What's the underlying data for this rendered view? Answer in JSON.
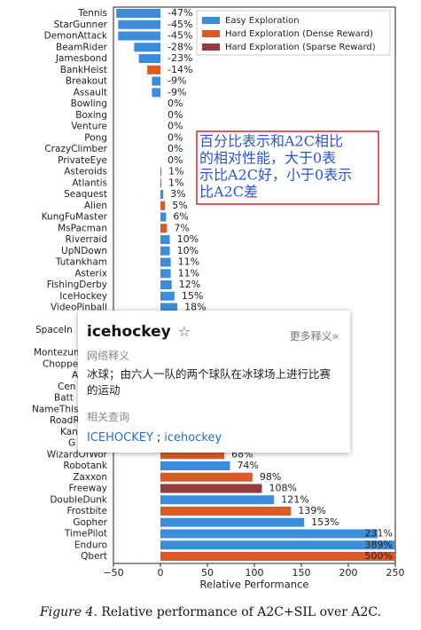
{
  "chart_data": {
    "type": "barh",
    "xlabel": "Relative Performance",
    "categories": [
      "Tennis",
      "StarGunner",
      "DemonAttack",
      "BeamRider",
      "Jamesbond",
      "BankHeist",
      "Breakout",
      "Assault",
      "Bowling",
      "Boxing",
      "Venture",
      "Pong",
      "CrazyClimber",
      "PrivateEye",
      "Asteroids",
      "Atlantis",
      "Seaquest",
      "Alien",
      "KungFuMaster",
      "MsPacman",
      "Riverraid",
      "UpNDown",
      "Tutankham",
      "Asterix",
      "FishingDerby",
      "IceHockey",
      "VideoPinball",
      null,
      "SpaceIn",
      null,
      "MontezumaRe",
      "ChopperCon",
      "A",
      "Cen",
      "Batt",
      "NameThis",
      "RoadR",
      "Kan",
      "G",
      "WizardOfWor",
      "Robotank",
      "Zaxxon",
      "Freeway",
      "DoubleDunk",
      "Frostbite",
      "Gopher",
      "TimePilot",
      "Enduro",
      "Qbert"
    ],
    "series": [
      {
        "name": "Easy Exploration",
        "color": "#3b8ddc",
        "values": [
          -47,
          -45,
          -45,
          -28,
          -23,
          null,
          -9,
          -9,
          0,
          0,
          0,
          0,
          0,
          0,
          1,
          1,
          3,
          null,
          6,
          null,
          10,
          10,
          11,
          11,
          12,
          15,
          18,
          null,
          null,
          null,
          null,
          null,
          null,
          null,
          null,
          null,
          null,
          null,
          null,
          null,
          74,
          null,
          null,
          121,
          null,
          153,
          231,
          389,
          null
        ],
        "value_labels": [
          "-47%",
          "-45%",
          "-45%",
          "-28%",
          "-23%",
          null,
          "-9%",
          "-9%",
          "0%",
          "0%",
          "0%",
          "0%",
          "0%",
          "0%",
          "1%",
          "1%",
          "3%",
          null,
          "6%",
          null,
          "10%",
          "10%",
          "11%",
          "11%",
          "12%",
          "15%",
          "18%",
          null,
          null,
          null,
          null,
          null,
          null,
          null,
          null,
          null,
          null,
          null,
          null,
          null,
          "74%",
          null,
          null,
          "121%",
          null,
          "153%",
          "231%",
          "389%",
          null
        ]
      },
      {
        "name": "Hard Exploration (Dense Reward)",
        "color": "#dc5a26",
        "values": [
          null,
          null,
          null,
          null,
          null,
          -14,
          null,
          null,
          null,
          null,
          null,
          null,
          null,
          null,
          null,
          null,
          null,
          5,
          null,
          7,
          null,
          null,
          null,
          null,
          null,
          null,
          null,
          null,
          null,
          null,
          null,
          null,
          null,
          null,
          null,
          null,
          null,
          null,
          null,
          68,
          null,
          98,
          null,
          null,
          139,
          null,
          null,
          null,
          500
        ],
        "value_labels": [
          null,
          null,
          null,
          null,
          null,
          "-14%",
          null,
          null,
          null,
          null,
          null,
          null,
          null,
          null,
          null,
          null,
          null,
          "5%",
          null,
          "7%",
          null,
          null,
          null,
          null,
          null,
          null,
          null,
          null,
          null,
          null,
          null,
          null,
          null,
          null,
          null,
          null,
          null,
          null,
          null,
          "68%",
          null,
          "98%",
          null,
          null,
          "139%",
          null,
          null,
          null,
          "500%"
        ]
      },
      {
        "name": "Hard Exploration (Sparse Reward)",
        "color": "#973a3c",
        "values": [
          null,
          null,
          null,
          null,
          null,
          null,
          null,
          null,
          null,
          null,
          null,
          null,
          null,
          null,
          null,
          null,
          null,
          null,
          null,
          null,
          null,
          null,
          null,
          null,
          null,
          null,
          null,
          null,
          null,
          null,
          null,
          null,
          null,
          null,
          null,
          null,
          null,
          null,
          null,
          null,
          null,
          null,
          108,
          null,
          null,
          null,
          null,
          null,
          null
        ],
        "value_labels": [
          null,
          null,
          null,
          null,
          null,
          null,
          null,
          null,
          null,
          null,
          null,
          null,
          null,
          null,
          null,
          null,
          null,
          null,
          null,
          null,
          null,
          null,
          null,
          null,
          null,
          null,
          null,
          null,
          null,
          null,
          null,
          null,
          null,
          null,
          null,
          null,
          null,
          null,
          null,
          null,
          null,
          null,
          "108%",
          null,
          null,
          null,
          null,
          null,
          null
        ]
      }
    ],
    "xlim": [
      -50,
      250
    ],
    "xticks": [
      {
        "value": -50,
        "label": "−50"
      },
      0,
      50,
      100,
      150,
      200,
      250
    ],
    "legend": "upper right",
    "annotation": {
      "lines": [
        "百分比表示和A2C相比",
        "的相对性能，大于0表",
        "示比A2C好，小于0表示",
        "比A2C差"
      ]
    }
  },
  "caption": {
    "label": "Figure 4.",
    "text": "Relative performance of A2C+SIL over A2C."
  },
  "popup": {
    "word": "icehockey",
    "star": "☆",
    "more": "更多释义»",
    "section1": "网络释义",
    "definition": [
      "冰球；由六人一队的两个球队在冰球场上进行比赛",
      "的运动"
    ],
    "section2": "相关查询",
    "links": [
      "ICEHOCKEY",
      "icehockey"
    ],
    "separator": ";"
  }
}
